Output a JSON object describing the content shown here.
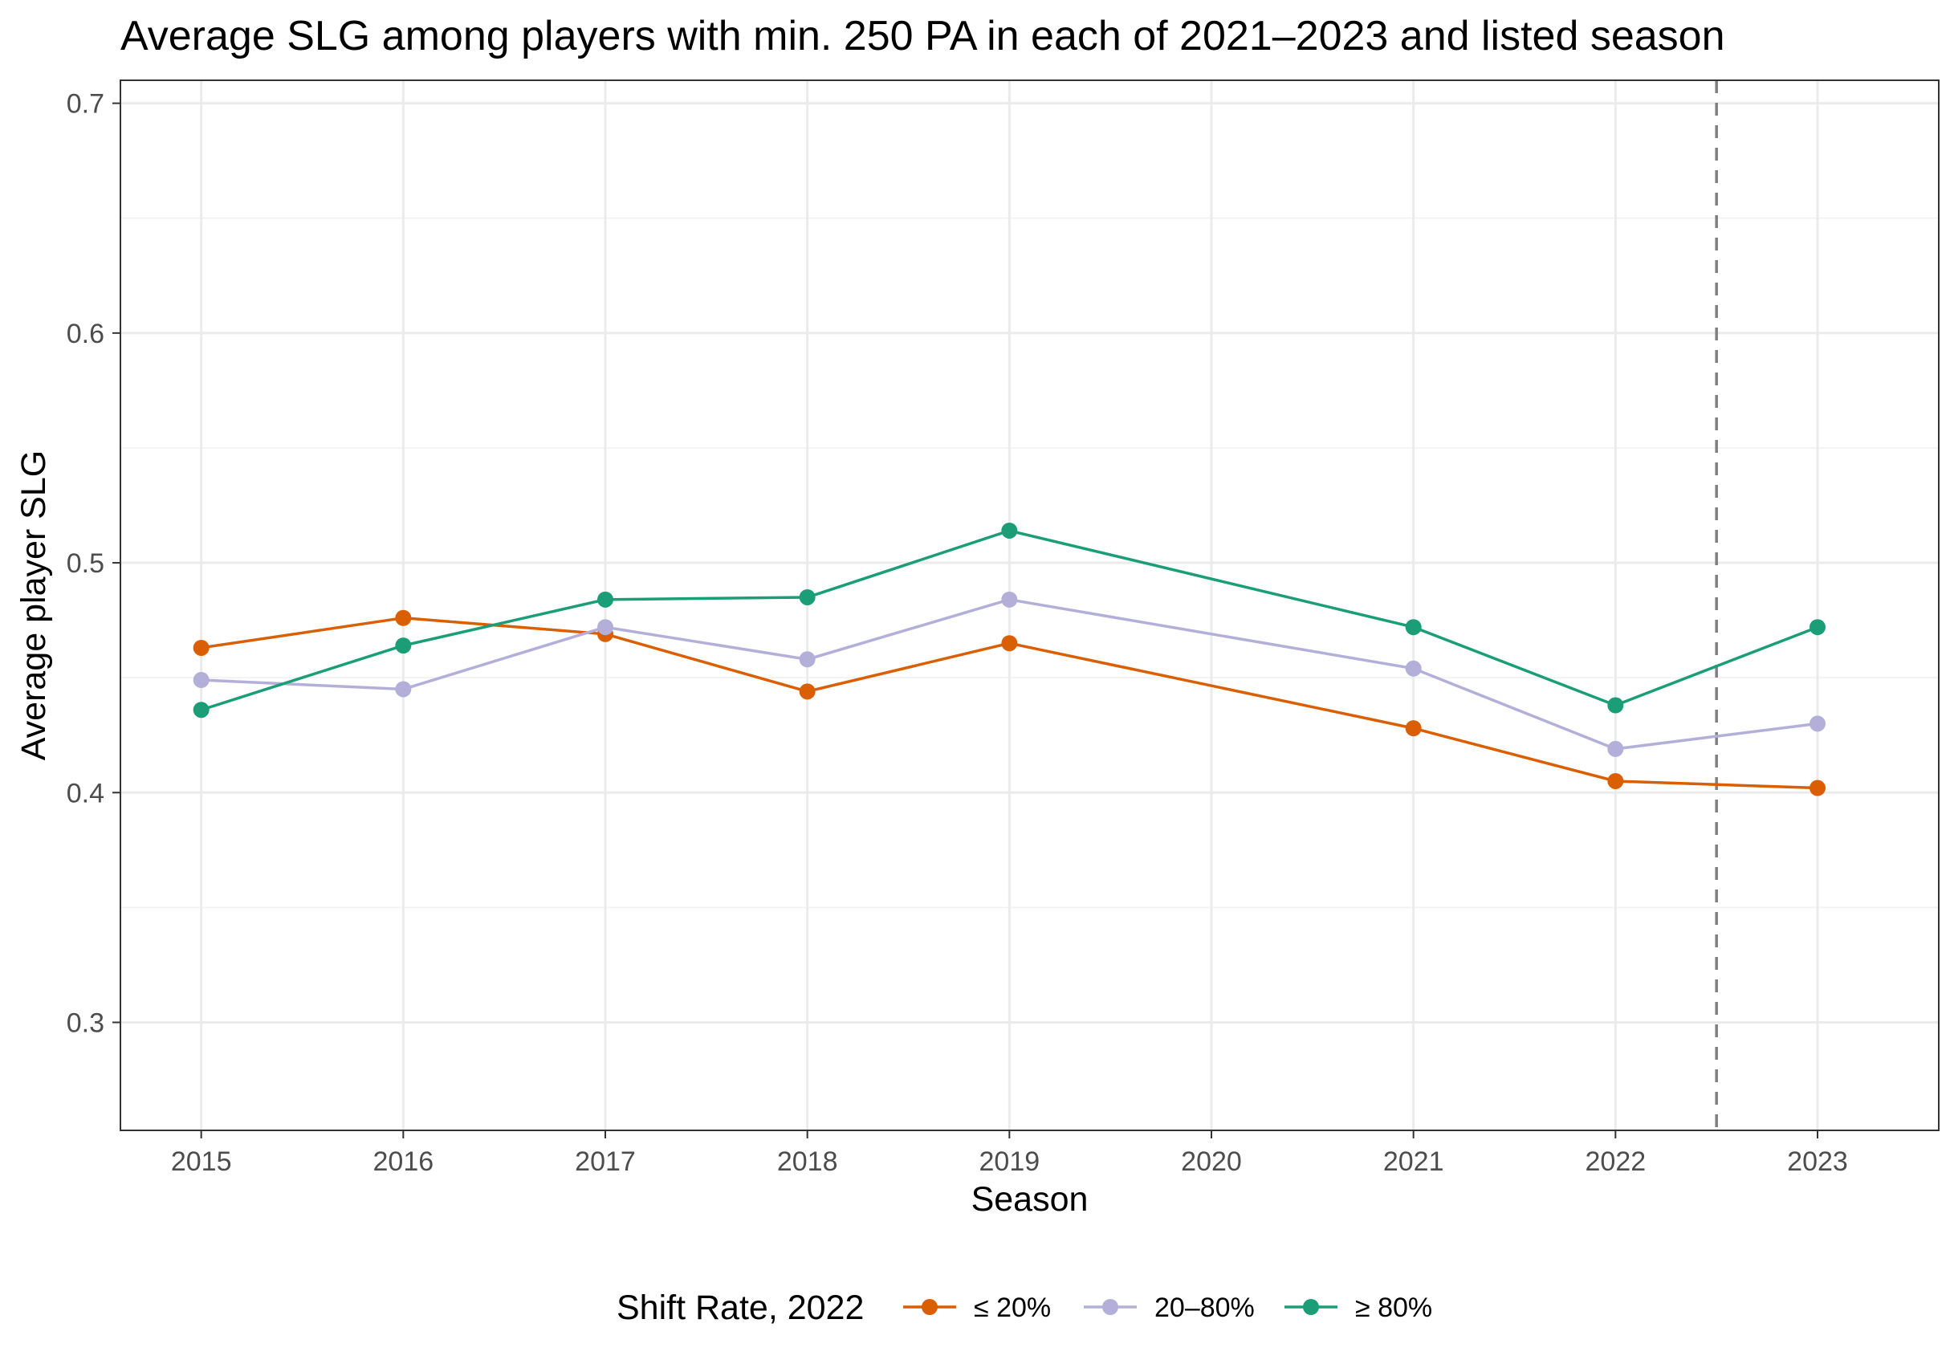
{
  "chart_data": {
    "type": "line",
    "title": "Average SLG among players with min. 250 PA in each of 2021–2023 and listed season",
    "xlabel": "Season",
    "ylabel": "Average player SLG",
    "x": [
      2015,
      2016,
      2017,
      2018,
      2019,
      2021,
      2022,
      2023
    ],
    "x_ticks": [
      "2015",
      "2016",
      "2017",
      "2018",
      "2019",
      "2020",
      "2021",
      "2022",
      "2023"
    ],
    "x_tick_values": [
      2015,
      2016,
      2017,
      2018,
      2019,
      2020,
      2021,
      2022,
      2023
    ],
    "xlim": [
      2014.6,
      2023.6
    ],
    "y_ticks": [
      "0.3",
      "0.4",
      "0.5",
      "0.6",
      "0.7"
    ],
    "y_tick_values": [
      0.3,
      0.4,
      0.5,
      0.6,
      0.7
    ],
    "ylim": [
      0.253,
      0.71
    ],
    "grid": true,
    "vline": {
      "x": 2022.5,
      "style": "dashed",
      "color": "#7f7f7f"
    },
    "legend": {
      "title": "Shift Rate, 2022",
      "placement": "bottom"
    },
    "series": [
      {
        "name": "≤ 20%",
        "color": "#d95f02",
        "opacity": 1,
        "values": [
          0.463,
          0.476,
          0.469,
          0.444,
          0.465,
          0.428,
          0.405,
          0.402
        ]
      },
      {
        "name": "20–80%",
        "color": "#b3afd9",
        "opacity": 1,
        "values": [
          0.449,
          0.445,
          0.472,
          0.458,
          0.484,
          0.454,
          0.419,
          0.43
        ]
      },
      {
        "name": "≥ 80%",
        "color": "#1b9e77",
        "opacity": 1,
        "values": [
          0.436,
          0.464,
          0.484,
          0.485,
          0.514,
          0.472,
          0.438,
          0.472
        ]
      }
    ]
  }
}
